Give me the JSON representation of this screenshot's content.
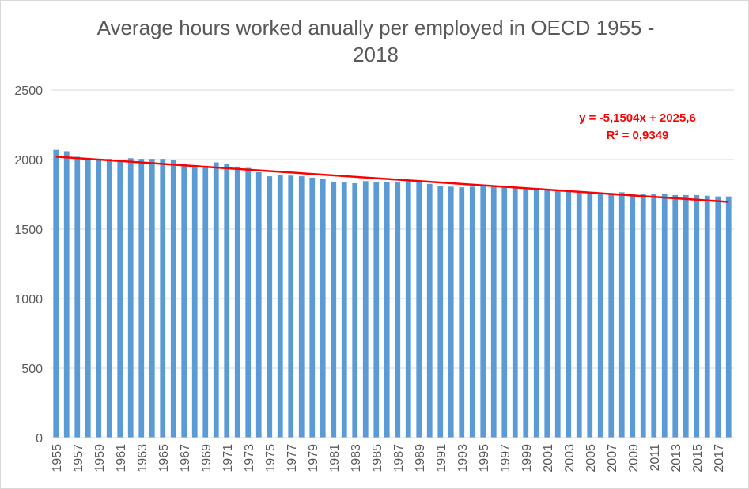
{
  "chart_data": {
    "type": "bar",
    "title": "Average hours worked anually per employed in OECD 1955 - 2018",
    "xlabel": "",
    "ylabel": "",
    "ylim": [
      0,
      2500
    ],
    "yticks": [
      0,
      500,
      1000,
      1500,
      2000,
      2500
    ],
    "grid": true,
    "legend": "none",
    "categories": [
      1955,
      1956,
      1957,
      1958,
      1959,
      1960,
      1961,
      1962,
      1963,
      1964,
      1965,
      1966,
      1967,
      1968,
      1969,
      1970,
      1971,
      1972,
      1973,
      1974,
      1975,
      1976,
      1977,
      1978,
      1979,
      1980,
      1981,
      1982,
      1983,
      1984,
      1985,
      1986,
      1987,
      1988,
      1989,
      1990,
      1991,
      1992,
      1993,
      1994,
      1995,
      1996,
      1997,
      1998,
      1999,
      2000,
      2001,
      2002,
      2003,
      2004,
      2005,
      2006,
      2007,
      2008,
      2009,
      2010,
      2011,
      2012,
      2013,
      2014,
      2015,
      2016,
      2017,
      2018
    ],
    "xtick_labels": [
      "1955",
      "1957",
      "1959",
      "1961",
      "1963",
      "1965",
      "1967",
      "1969",
      "1971",
      "1973",
      "1975",
      "1977",
      "1979",
      "1981",
      "1983",
      "1985",
      "1987",
      "1989",
      "1991",
      "1993",
      "1995",
      "1997",
      "1999",
      "2001",
      "2003",
      "2005",
      "2007",
      "2009",
      "2011",
      "2013",
      "2015",
      "2017"
    ],
    "values": [
      2070,
      2060,
      2020,
      2010,
      2000,
      2005,
      2000,
      2010,
      2005,
      2005,
      2005,
      1995,
      1970,
      1955,
      1955,
      1980,
      1970,
      1950,
      1940,
      1910,
      1880,
      1890,
      1885,
      1880,
      1870,
      1860,
      1840,
      1835,
      1830,
      1845,
      1840,
      1840,
      1840,
      1845,
      1840,
      1825,
      1810,
      1805,
      1800,
      1805,
      1810,
      1805,
      1800,
      1795,
      1790,
      1785,
      1780,
      1780,
      1770,
      1765,
      1760,
      1755,
      1760,
      1765,
      1755,
      1755,
      1755,
      1750,
      1745,
      1745,
      1745,
      1740,
      1735,
      1735
    ],
    "bar_color": "#5b9bd5",
    "trendline": {
      "equation": "y = -5,1504x + 2025,6",
      "r_squared": "R² = 0,9349",
      "slope": -5.1504,
      "intercept": 2025.6,
      "color": "#ff0000"
    }
  }
}
